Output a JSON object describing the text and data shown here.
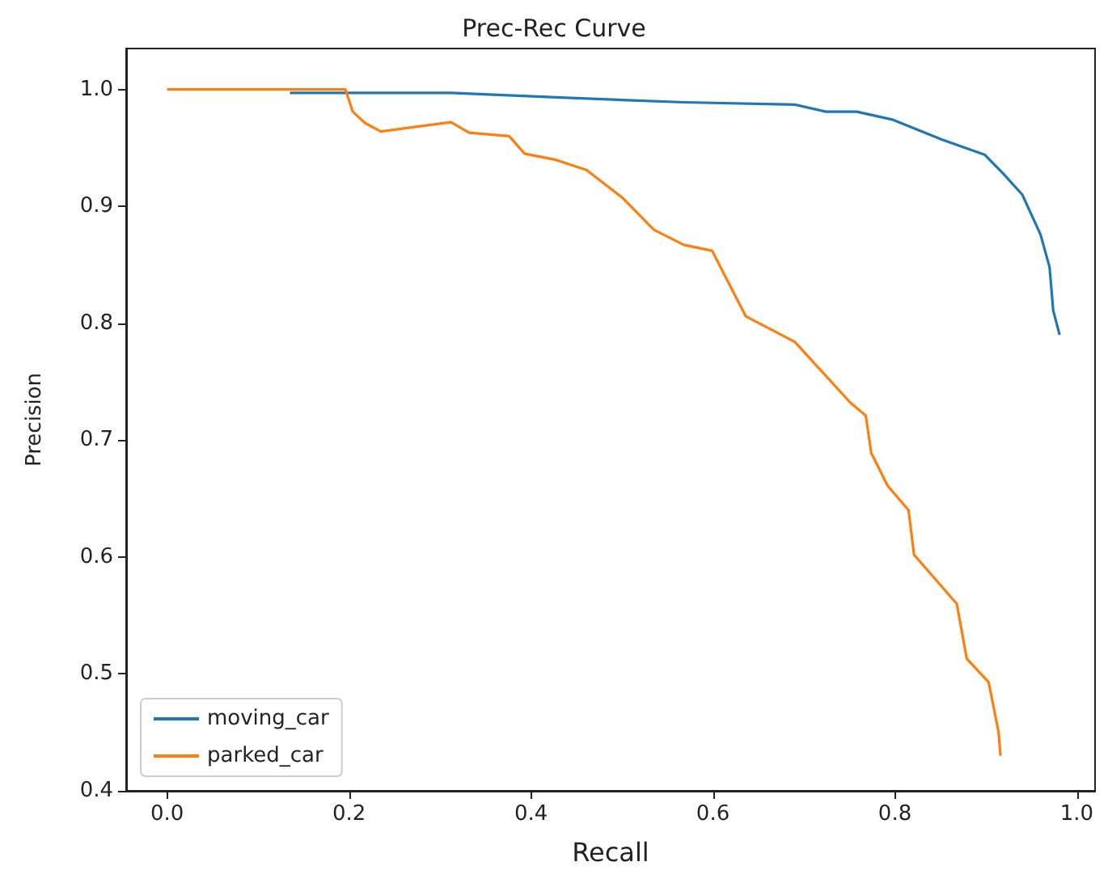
{
  "chart_data": {
    "type": "line",
    "title": "Prec-Rec Curve",
    "xlabel": "Recall",
    "ylabel": "Precision",
    "xlim": [
      -0.045,
      1.02
    ],
    "ylim": [
      0.4,
      1.035
    ],
    "xticks": [
      {
        "value": 0,
        "label": "0.0"
      },
      0.2,
      0.4,
      0.6,
      0.8,
      {
        "value": 1,
        "label": "1.0"
      }
    ],
    "yticks": [
      0.4,
      0.5,
      0.6,
      0.7,
      0.8,
      0.9,
      {
        "value": 1,
        "label": "1.0"
      }
    ],
    "grid": false,
    "legend": "bottom left",
    "marker": "none",
    "line_style": "solid",
    "series": [
      {
        "name": "moving_car",
        "color": "#1f77b4",
        "x": [
          0.135,
          0.312,
          0.433,
          0.568,
          0.69,
          0.724,
          0.758,
          0.798,
          0.852,
          0.899,
          0.919,
          0.94,
          0.96,
          0.97,
          0.974,
          0.981
        ],
        "values": [
          0.997,
          0.997,
          0.993,
          0.989,
          0.987,
          0.981,
          0.981,
          0.974,
          0.957,
          0.944,
          0.928,
          0.91,
          0.876,
          0.848,
          0.811,
          0.79
        ]
      },
      {
        "name": "parked_car",
        "color": "#ff7f0e",
        "x": [
          0,
          0.196,
          0.204,
          0.218,
          0.235,
          0.312,
          0.332,
          0.376,
          0.393,
          0.426,
          0.461,
          0.501,
          0.535,
          0.568,
          0.599,
          0.636,
          0.69,
          0.751,
          0.768,
          0.774,
          0.792,
          0.815,
          0.821,
          0.868,
          0.879,
          0.903,
          0.914,
          0.916
        ],
        "values": [
          1.0,
          1.0,
          0.981,
          0.971,
          0.964,
          0.972,
          0.963,
          0.96,
          0.945,
          0.94,
          0.931,
          0.907,
          0.88,
          0.867,
          0.862,
          0.806,
          0.784,
          0.732,
          0.721,
          0.689,
          0.661,
          0.64,
          0.602,
          0.56,
          0.513,
          0.493,
          0.45,
          0.43
        ]
      }
    ]
  }
}
